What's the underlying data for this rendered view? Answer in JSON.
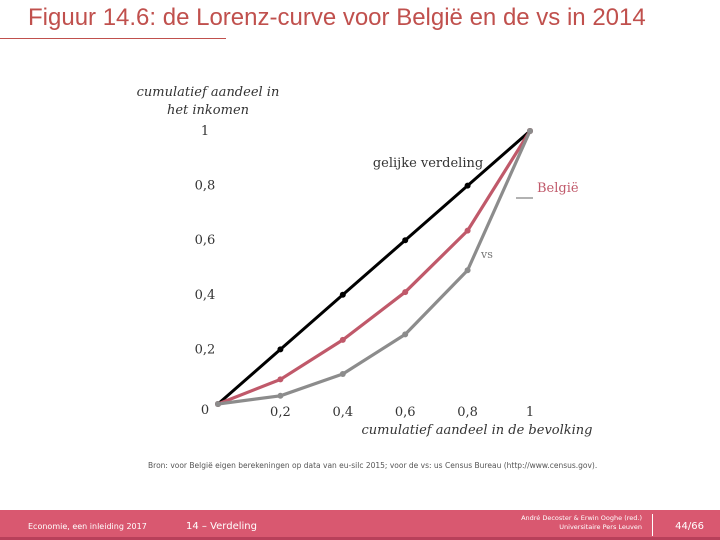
{
  "header": {
    "title": "Figuur 14.6: de Lorenz-curve voor België en de vs in 2014"
  },
  "chart_data": {
    "type": "line",
    "ylabel_line1": "cumulatief aandeel in",
    "ylabel_line2": "het inkomen",
    "xlabel": "cumulatief aandeel in  de bevolking",
    "xlim": [
      0,
      1
    ],
    "ylim": [
      0,
      1
    ],
    "xticks": [
      "0",
      "0,2",
      "0,4",
      "0,6",
      "0,8",
      "1"
    ],
    "yticks": [
      "0",
      "0,2",
      "0,4",
      "0,6",
      "0,8",
      "1"
    ],
    "x": [
      0,
      0.2,
      0.4,
      0.6,
      0.8,
      1
    ],
    "series": [
      {
        "name": "gelijke verdeling",
        "values": [
          0,
          0.2,
          0.4,
          0.6,
          0.8,
          1
        ],
        "color": "#000000"
      },
      {
        "name": "België",
        "values": [
          0,
          0.09,
          0.235,
          0.41,
          0.635,
          1
        ],
        "color": "#c0596a"
      },
      {
        "name": "vs",
        "values": [
          0,
          0.03,
          0.11,
          0.255,
          0.49,
          1
        ],
        "color": "#8c8c8c"
      }
    ],
    "grid": false
  },
  "source": "Bron: voor België eigen berekeningen op data van eu-silc 2015; voor de vs: us Census Bureau (http://www.census.gov).",
  "footer": {
    "book": "Economie, een inleiding 2017",
    "chapter": "14 – Verdeling",
    "authors_line1": "André Decoster & Erwin Ooghe (red.)",
    "authors_line2": "Universitaire Pers Leuven",
    "page": "44/66"
  }
}
